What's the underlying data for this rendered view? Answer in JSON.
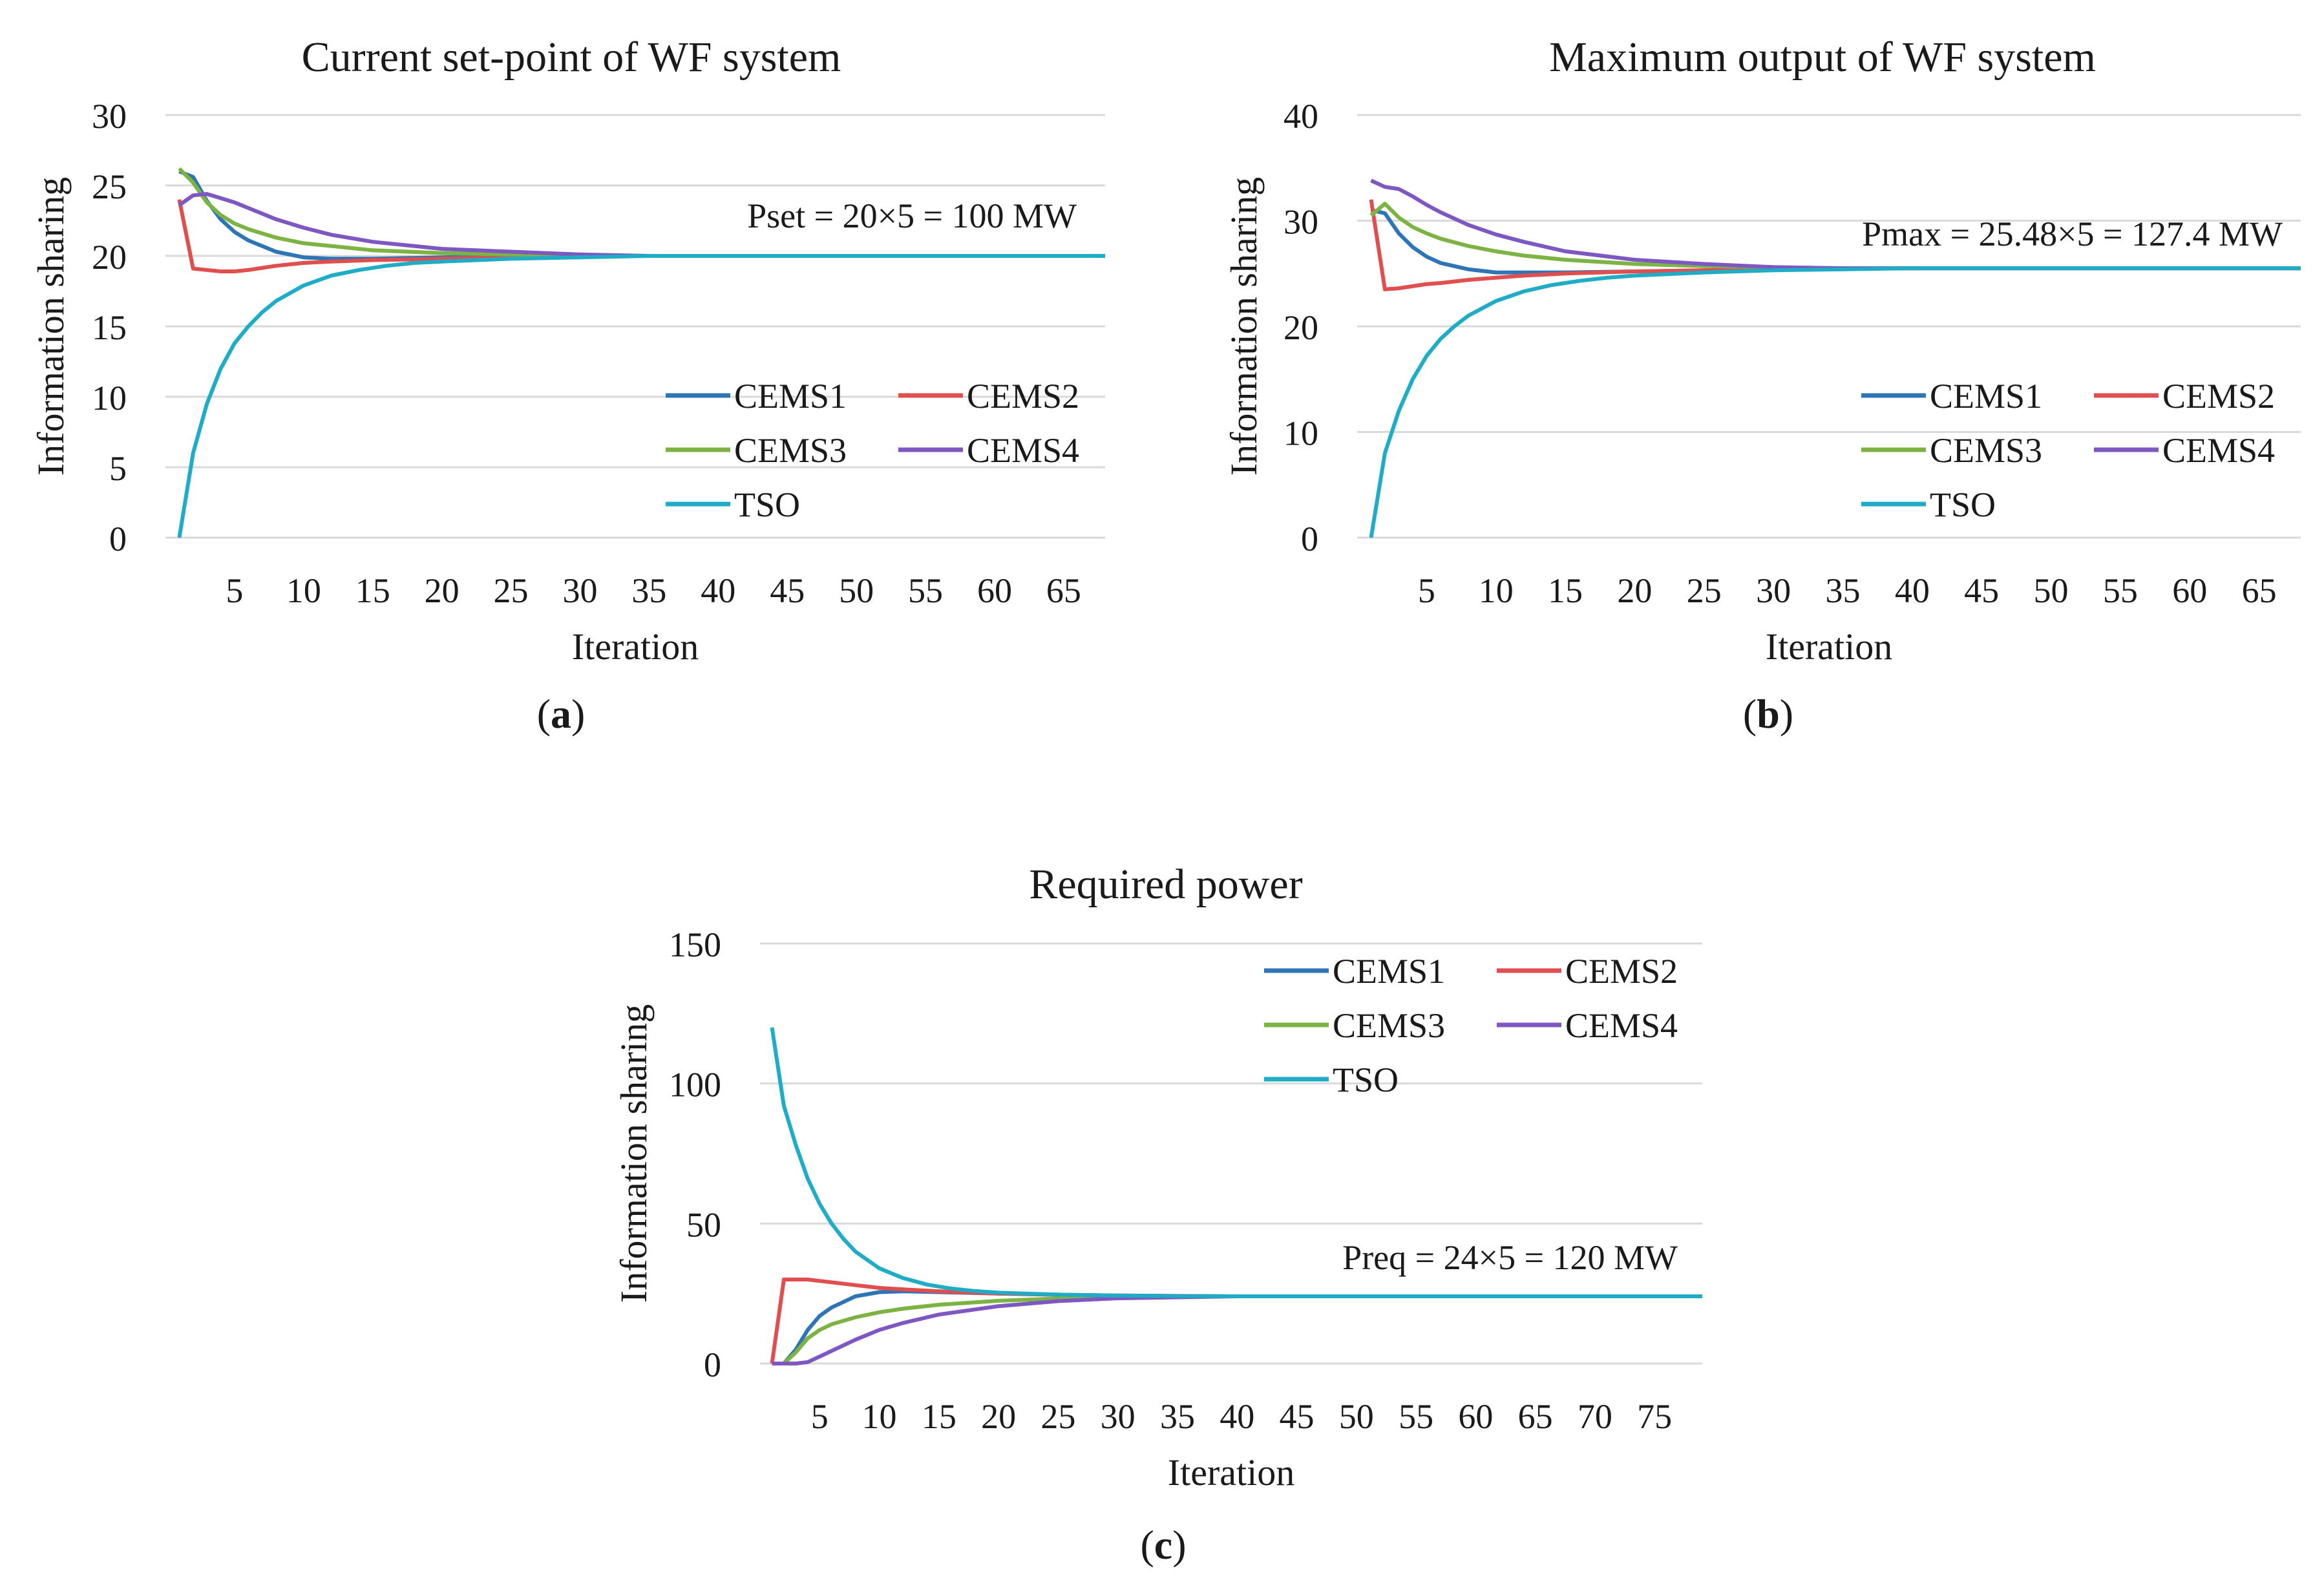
{
  "chart_data": [
    {
      "id": "a",
      "type": "line",
      "title": "Current set-point of WF system",
      "xlabel": "Iteration",
      "ylabel": "Information sharing",
      "ylim": [
        0,
        30
      ],
      "yticks": [
        0,
        5,
        10,
        15,
        20,
        25,
        30
      ],
      "xlim": [
        0,
        68
      ],
      "xticks": [
        5,
        10,
        15,
        20,
        25,
        30,
        35,
        40,
        45,
        50,
        55,
        60,
        65
      ],
      "grid": "horizontal",
      "annotation": "Pset = 20×5 = 100 MW",
      "caption_label": "a",
      "legend_position": "right",
      "series": [
        {
          "name": "CEMS1",
          "color": "#2e75b6",
          "x": [
            1,
            2,
            3,
            4,
            5,
            6,
            8,
            10,
            12,
            15,
            20,
            25,
            30,
            35,
            40,
            50,
            60,
            68
          ],
          "values": [
            26.0,
            25.6,
            23.9,
            22.6,
            21.7,
            21.1,
            20.3,
            19.9,
            19.8,
            19.8,
            19.9,
            20.0,
            20.0,
            20.0,
            20.0,
            20.0,
            20.0,
            20.0
          ]
        },
        {
          "name": "CEMS2",
          "color": "#e04e4e",
          "x": [
            1,
            2,
            3,
            4,
            5,
            6,
            8,
            10,
            12,
            15,
            20,
            25,
            30,
            35,
            40,
            50,
            60,
            68
          ],
          "values": [
            24.0,
            19.1,
            19.0,
            18.9,
            18.9,
            19.0,
            19.3,
            19.5,
            19.6,
            19.7,
            19.8,
            19.9,
            20.0,
            20.0,
            20.0,
            20.0,
            20.0,
            20.0
          ]
        },
        {
          "name": "CEMS3",
          "color": "#7cb342",
          "x": [
            1,
            2,
            3,
            4,
            5,
            6,
            8,
            10,
            12,
            15,
            20,
            25,
            30,
            35,
            40,
            50,
            60,
            68
          ],
          "values": [
            26.2,
            25.2,
            23.8,
            22.9,
            22.3,
            21.9,
            21.3,
            20.9,
            20.7,
            20.4,
            20.2,
            20.1,
            20.0,
            20.0,
            20.0,
            20.0,
            20.0,
            20.0
          ]
        },
        {
          "name": "CEMS4",
          "color": "#7e57c2",
          "x": [
            1,
            2,
            3,
            4,
            5,
            6,
            8,
            10,
            12,
            15,
            20,
            25,
            30,
            35,
            40,
            50,
            60,
            68
          ],
          "values": [
            23.6,
            24.3,
            24.4,
            24.1,
            23.8,
            23.4,
            22.6,
            22.0,
            21.5,
            21.0,
            20.5,
            20.3,
            20.1,
            20.0,
            20.0,
            20.0,
            20.0,
            20.0
          ]
        },
        {
          "name": "TSO",
          "color": "#1eacc7",
          "x": [
            1,
            2,
            3,
            4,
            5,
            6,
            7,
            8,
            10,
            12,
            14,
            16,
            18,
            20,
            25,
            30,
            35,
            40,
            50,
            60,
            68
          ],
          "values": [
            0,
            6.0,
            9.5,
            12.0,
            13.8,
            15.0,
            16.0,
            16.8,
            17.9,
            18.6,
            19.0,
            19.3,
            19.5,
            19.6,
            19.8,
            19.9,
            20.0,
            20.0,
            20.0,
            20.0,
            20.0
          ]
        }
      ]
    },
    {
      "id": "b",
      "type": "line",
      "title": "Maximum output of WF system",
      "xlabel": "Iteration",
      "ylabel": "Information sharing",
      "ylim": [
        0,
        40
      ],
      "yticks": [
        0,
        10,
        20,
        30,
        40
      ],
      "xlim": [
        0,
        68
      ],
      "xticks": [
        5,
        10,
        15,
        20,
        25,
        30,
        35,
        40,
        45,
        50,
        55,
        60,
        65
      ],
      "grid": "horizontal",
      "annotation": "Pmax = 25.48×5 = 127.4 MW",
      "caption_label": "b",
      "legend_position": "right",
      "series": [
        {
          "name": "CEMS1",
          "color": "#2e75b6",
          "x": [
            1,
            2,
            3,
            4,
            5,
            6,
            8,
            10,
            12,
            15,
            20,
            25,
            30,
            35,
            40,
            50,
            60,
            68
          ],
          "values": [
            31.0,
            30.7,
            28.8,
            27.5,
            26.6,
            26.0,
            25.4,
            25.1,
            25.1,
            25.1,
            25.2,
            25.3,
            25.4,
            25.5,
            25.5,
            25.5,
            25.5,
            25.5
          ]
        },
        {
          "name": "CEMS2",
          "color": "#e04e4e",
          "x": [
            1,
            2,
            3,
            4,
            5,
            6,
            8,
            10,
            12,
            15,
            20,
            25,
            30,
            35,
            40,
            50,
            60,
            68
          ],
          "values": [
            32.0,
            23.5,
            23.6,
            23.8,
            24.0,
            24.1,
            24.4,
            24.6,
            24.8,
            25.0,
            25.2,
            25.3,
            25.4,
            25.5,
            25.5,
            25.5,
            25.5,
            25.5
          ]
        },
        {
          "name": "CEMS3",
          "color": "#7cb342",
          "x": [
            1,
            2,
            3,
            4,
            5,
            6,
            8,
            10,
            12,
            15,
            20,
            25,
            30,
            35,
            40,
            50,
            60,
            68
          ],
          "values": [
            30.5,
            31.6,
            30.3,
            29.4,
            28.8,
            28.3,
            27.6,
            27.1,
            26.7,
            26.3,
            25.9,
            25.7,
            25.6,
            25.5,
            25.5,
            25.5,
            25.5,
            25.5
          ]
        },
        {
          "name": "CEMS4",
          "color": "#7e57c2",
          "x": [
            1,
            2,
            3,
            4,
            5,
            6,
            8,
            10,
            12,
            15,
            20,
            25,
            30,
            35,
            40,
            50,
            60,
            68
          ],
          "values": [
            33.8,
            33.2,
            33.0,
            32.3,
            31.5,
            30.8,
            29.6,
            28.7,
            28.0,
            27.1,
            26.3,
            25.9,
            25.6,
            25.5,
            25.5,
            25.5,
            25.5,
            25.5
          ]
        },
        {
          "name": "TSO",
          "color": "#1eacc7",
          "x": [
            1,
            2,
            3,
            4,
            5,
            6,
            7,
            8,
            10,
            12,
            14,
            16,
            18,
            20,
            25,
            30,
            35,
            40,
            50,
            60,
            68
          ],
          "values": [
            0,
            8.0,
            12.0,
            15.0,
            17.2,
            18.8,
            20.0,
            21.0,
            22.4,
            23.3,
            23.9,
            24.3,
            24.6,
            24.8,
            25.1,
            25.3,
            25.4,
            25.5,
            25.5,
            25.5,
            25.5
          ]
        }
      ]
    },
    {
      "id": "c",
      "type": "line",
      "title": "Required power",
      "xlabel": "Iteration",
      "ylabel": "Information sharing",
      "ylim": [
        0,
        150
      ],
      "yticks": [
        0,
        50,
        100,
        150
      ],
      "xlim": [
        0,
        79
      ],
      "xticks": [
        5,
        10,
        15,
        20,
        25,
        30,
        35,
        40,
        45,
        50,
        55,
        60,
        65,
        70,
        75
      ],
      "grid": "horizontal",
      "annotation": "Preq = 24×5 = 120 MW",
      "caption_label": "c",
      "legend_position": "top-right",
      "series": [
        {
          "name": "CEMS1",
          "color": "#2e75b6",
          "x": [
            1,
            2,
            3,
            4,
            5,
            6,
            7,
            8,
            10,
            12,
            15,
            20,
            25,
            30,
            40,
            50,
            60,
            70,
            79
          ],
          "values": [
            0,
            0,
            5,
            12,
            17,
            20,
            22,
            24,
            25.5,
            25.8,
            25.5,
            25,
            24.5,
            24.2,
            24,
            24,
            24,
            24,
            24
          ]
        },
        {
          "name": "CEMS2",
          "color": "#e04e4e",
          "x": [
            1,
            2,
            3,
            4,
            5,
            6,
            8,
            10,
            12,
            15,
            20,
            25,
            30,
            40,
            50,
            60,
            70,
            79
          ],
          "values": [
            0,
            30,
            30,
            30,
            29.5,
            29,
            28,
            27,
            26.5,
            25.8,
            25,
            24.6,
            24.3,
            24,
            24,
            24,
            24,
            24
          ]
        },
        {
          "name": "CEMS3",
          "color": "#7cb342",
          "x": [
            1,
            2,
            3,
            4,
            5,
            6,
            8,
            10,
            12,
            15,
            20,
            25,
            30,
            40,
            50,
            60,
            70,
            79
          ],
          "values": [
            0,
            0,
            4,
            9,
            12,
            14,
            16.5,
            18.3,
            19.6,
            21,
            22.4,
            23.2,
            23.7,
            24,
            24,
            24,
            24,
            24
          ]
        },
        {
          "name": "CEMS4",
          "color": "#7e57c2",
          "x": [
            1,
            2,
            3,
            4,
            5,
            6,
            8,
            10,
            12,
            15,
            20,
            25,
            30,
            40,
            50,
            60,
            70,
            79
          ],
          "values": [
            0,
            0,
            0,
            0.5,
            2.5,
            4.5,
            8.5,
            12,
            14.5,
            17.5,
            20.5,
            22.3,
            23.3,
            24,
            24,
            24,
            24,
            24
          ]
        },
        {
          "name": "TSO",
          "color": "#1eacc7",
          "x": [
            1,
            2,
            3,
            4,
            5,
            6,
            7,
            8,
            10,
            12,
            14,
            16,
            18,
            20,
            25,
            30,
            35,
            40,
            50,
            60,
            70,
            79
          ],
          "values": [
            120,
            92,
            78,
            66,
            57,
            50,
            44.5,
            40,
            34,
            30.5,
            28.2,
            26.8,
            25.9,
            25.3,
            24.6,
            24.3,
            24.1,
            24,
            24,
            24,
            24,
            24
          ]
        }
      ]
    }
  ]
}
